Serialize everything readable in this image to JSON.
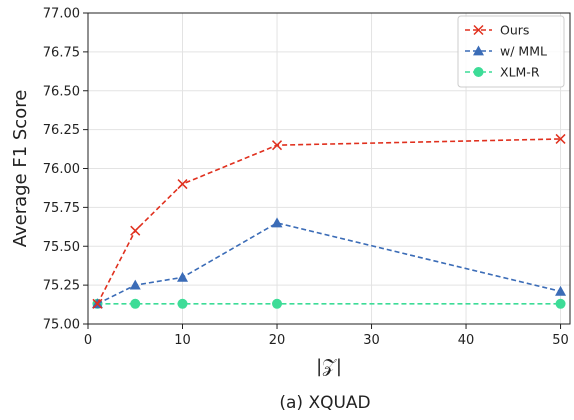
{
  "chart_data": {
    "type": "line",
    "xlabel": "|𝒵|",
    "ylabel": "Average F1 Score",
    "caption": "(a) XQUAD",
    "xlim": [
      0,
      51
    ],
    "ylim": [
      75.0,
      77.0
    ],
    "xticks": [
      0,
      10,
      20,
      30,
      40,
      50
    ],
    "yticks": [
      "75.00",
      "75.25",
      "75.50",
      "75.75",
      "76.00",
      "76.25",
      "76.50",
      "76.75",
      "77.00"
    ],
    "grid": true,
    "legend_position": "top-right",
    "x": [
      1,
      5,
      10,
      20,
      50
    ],
    "series": [
      {
        "name": "Ours",
        "color": "#e0301e",
        "marker": "x",
        "values": [
          75.13,
          75.6,
          75.9,
          76.15,
          76.19
        ]
      },
      {
        "name": "w/ MML",
        "color": "#3b6cb7",
        "marker": "triangle",
        "values": [
          75.13,
          75.25,
          75.3,
          75.65,
          75.21
        ]
      },
      {
        "name": "XLM-R",
        "color": "#3ddc97",
        "marker": "circle",
        "values": [
          75.13,
          75.13,
          75.13,
          75.13,
          75.13
        ]
      }
    ]
  }
}
